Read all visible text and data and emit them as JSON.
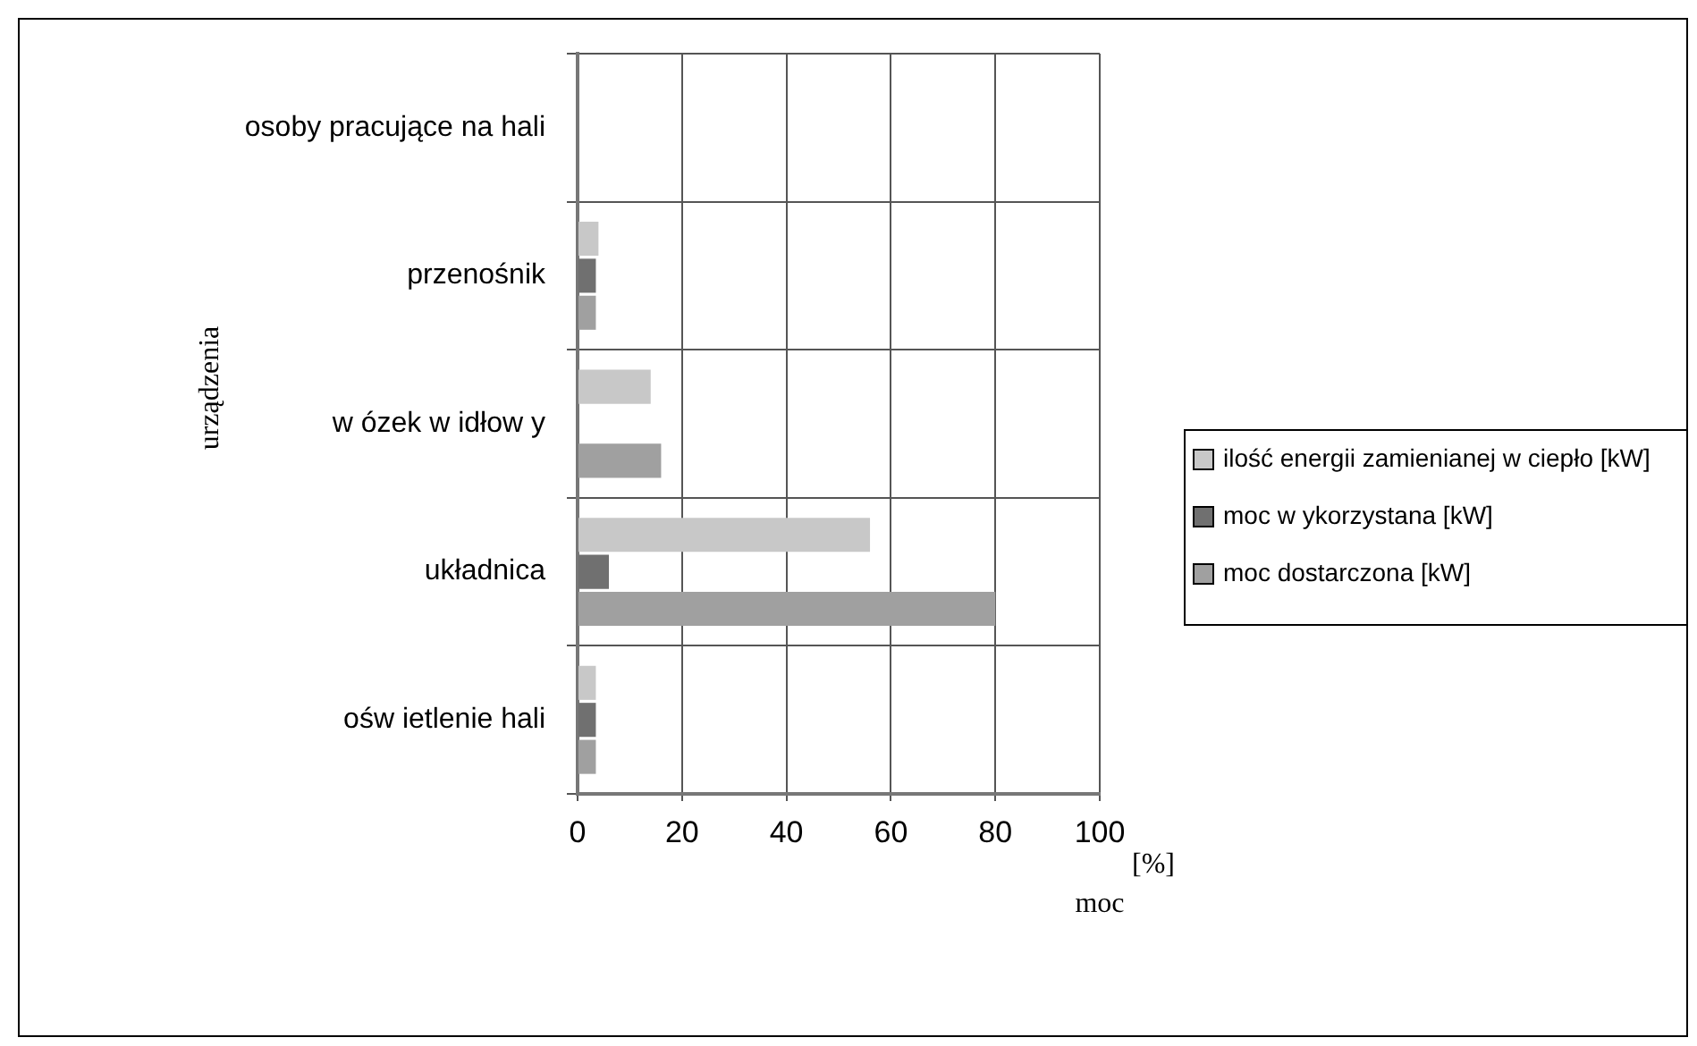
{
  "chart_data": {
    "type": "bar",
    "orientation": "horizontal",
    "xlabel": "moc",
    "ylabel": "urządzenia",
    "categories": [
      "osoby pracujące na hali",
      "przenośnik",
      "w ózek w idłow y",
      "układnica",
      "ośw ietlenie hali"
    ],
    "series": [
      {
        "name": "ilość energii zamienianej w ciepło [kW]",
        "color": "#c8c8c8",
        "values": [
          null,
          4,
          14,
          56,
          3.5
        ]
      },
      {
        "name": "moc w ykorzystana [kW]",
        "color": "#707070",
        "values": [
          null,
          3.5,
          null,
          6,
          3.5
        ]
      },
      {
        "name": "moc dostarczona [kW]",
        "color": "#a0a0a0",
        "values": [
          null,
          3.5,
          16,
          80,
          3.5
        ]
      }
    ],
    "xlim": [
      0,
      100
    ],
    "xticks": [
      0,
      20,
      40,
      60,
      80,
      100
    ],
    "grid": true,
    "legend": "right",
    "annotations": [
      "[%]"
    ]
  }
}
